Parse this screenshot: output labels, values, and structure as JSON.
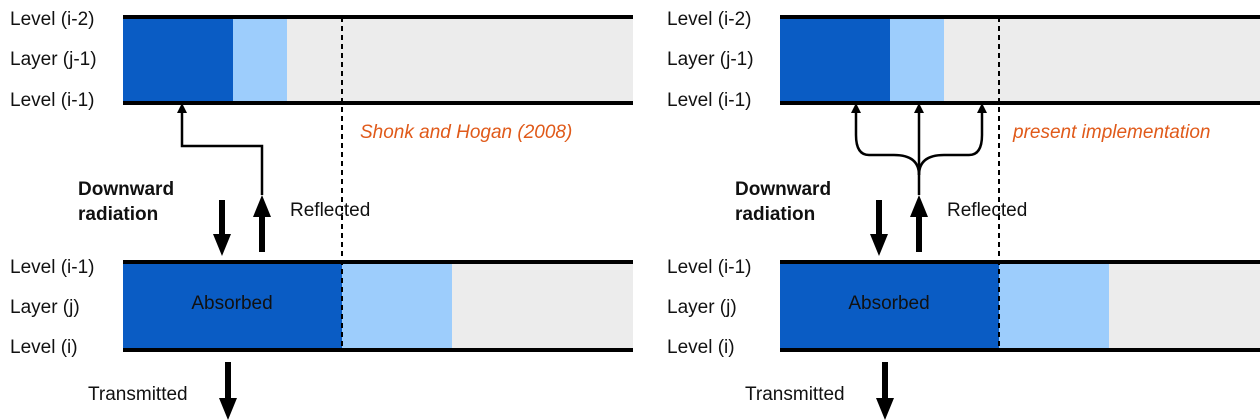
{
  "panels": [
    {
      "upper_labels": [
        "Level (i-2)",
        "Layer (j-1)",
        "Level (i-1)"
      ],
      "caption": "Shonk and Hogan (2008)",
      "downward": [
        "Downward",
        "radiation"
      ],
      "reflected": "Reflected",
      "lower_labels": [
        "Level (i-1)",
        "Layer (j)",
        "Level (i)"
      ],
      "absorbed": "Absorbed",
      "transmitted": "Transmitted"
    },
    {
      "upper_labels": [
        "Level (i-2)",
        "Layer (j-1)",
        "Level (i-1)"
      ],
      "caption": "present implementation",
      "downward": [
        "Downward",
        "radiation"
      ],
      "reflected": "Reflected",
      "lower_labels": [
        "Level (i-1)",
        "Layer (j)",
        "Level (i)"
      ],
      "absorbed": "Absorbed",
      "transmitted": "Transmitted"
    }
  ]
}
